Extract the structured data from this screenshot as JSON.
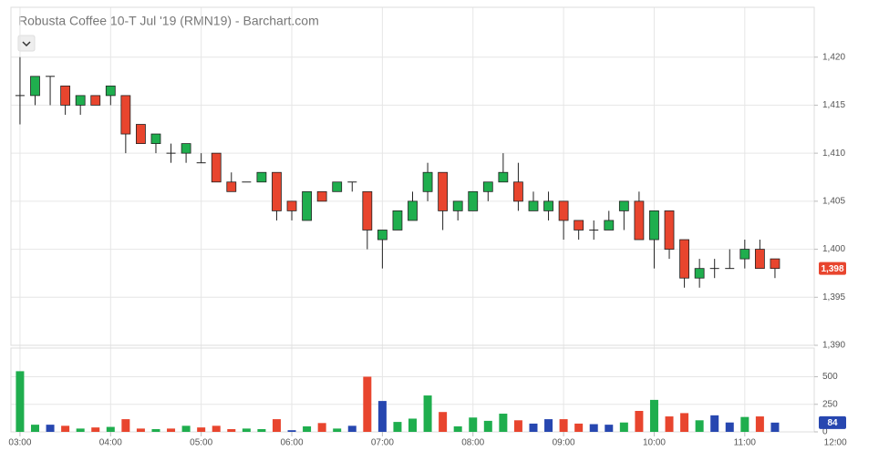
{
  "chart_data": [
    {
      "type": "candlestick",
      "title": "Robusta Coffee 10-T Jul '19 (RMN19) - Barchart.com",
      "x": [
        180,
        190,
        200,
        210,
        220,
        230,
        240,
        250,
        260,
        270,
        280,
        290,
        300,
        310,
        320,
        330,
        340,
        350,
        360,
        370,
        380,
        390,
        400,
        410,
        420,
        430,
        440,
        450,
        460,
        470,
        480,
        490,
        500,
        510,
        520,
        530,
        540,
        550,
        560,
        570,
        580,
        590,
        600,
        610,
        620,
        630,
        640,
        650,
        660,
        670,
        680
      ],
      "open": [
        1416,
        1416,
        1418,
        1417,
        1415,
        1416,
        1416,
        1416,
        1413,
        1411,
        1410,
        1410,
        1409,
        1410,
        1407,
        1407,
        1407,
        1408,
        1405,
        1403,
        1406,
        1406,
        1407,
        1406,
        1401,
        1402,
        1403,
        1406,
        1408,
        1404,
        1404,
        1406,
        1407,
        1407,
        1404,
        1404,
        1405,
        1403,
        1402,
        1402,
        1404,
        1405,
        1401,
        1404,
        1401,
        1397,
        1398,
        1398,
        1399,
        1400,
        1399
      ],
      "high": [
        1420,
        1418,
        1418,
        1417,
        1416,
        1416,
        1417,
        1416,
        1413,
        1412,
        1411,
        1411,
        1410,
        1410,
        1408,
        1407,
        1408,
        1408,
        1405,
        1406,
        1406,
        1407,
        1407,
        1406,
        1402,
        1404,
        1406,
        1409,
        1408,
        1405,
        1406,
        1407,
        1410,
        1409,
        1406,
        1406,
        1405,
        1403,
        1403,
        1404,
        1405,
        1406,
        1404,
        1404,
        1401,
        1399,
        1399,
        1400,
        1401,
        1401,
        1399
      ],
      "low": [
        1413,
        1415,
        1415,
        1414,
        1414,
        1415,
        1415,
        1410,
        1411,
        1410,
        1409,
        1409,
        1409,
        1407,
        1406,
        1407,
        1407,
        1403,
        1403,
        1403,
        1405,
        1406,
        1406,
        1400,
        1398,
        1402,
        1403,
        1405,
        1402,
        1403,
        1404,
        1405,
        1407,
        1404,
        1404,
        1403,
        1401,
        1401,
        1401,
        1402,
        1402,
        1401,
        1398,
        1399,
        1396,
        1396,
        1397,
        1398,
        1398,
        1398,
        1397
      ],
      "close": [
        1416,
        1418,
        1418,
        1415,
        1416,
        1415,
        1417,
        1412,
        1411,
        1412,
        1410,
        1411,
        1409,
        1407,
        1406,
        1407,
        1408,
        1404,
        1404,
        1406,
        1405,
        1407,
        1407,
        1402,
        1402,
        1404,
        1405,
        1408,
        1404,
        1405,
        1406,
        1407,
        1408,
        1405,
        1405,
        1405,
        1403,
        1402,
        1402,
        1403,
        1405,
        1401,
        1404,
        1400,
        1397,
        1398,
        1398,
        1398,
        1400,
        1398,
        1398
      ],
      "up_color": "#1fae4e",
      "down_color": "#e8452e",
      "xlim": [
        174,
        706
      ],
      "xticks": [
        {
          "value": 180,
          "label": "03:00"
        },
        {
          "value": 240,
          "label": "04:00"
        },
        {
          "value": 300,
          "label": "05:00"
        },
        {
          "value": 360,
          "label": "06:00"
        },
        {
          "value": 420,
          "label": "07:00"
        },
        {
          "value": 480,
          "label": "08:00"
        },
        {
          "value": 540,
          "label": "09:00"
        },
        {
          "value": 600,
          "label": "10:00"
        },
        {
          "value": 660,
          "label": "11:00"
        },
        {
          "value": 720,
          "label": "12:00"
        }
      ],
      "ylim": [
        1390,
        1425
      ],
      "yticks": [
        {
          "value": 1390,
          "label": "1,390"
        },
        {
          "value": 1395,
          "label": "1,395"
        },
        {
          "value": 1400,
          "label": "1,400"
        },
        {
          "value": 1405,
          "label": "1,405"
        },
        {
          "value": 1410,
          "label": "1,410"
        },
        {
          "value": 1415,
          "label": "1,415"
        },
        {
          "value": 1420,
          "label": "1,420"
        }
      ],
      "last_value": {
        "value": 1398,
        "label": "1,398"
      },
      "last_color": "#e8452e",
      "grid": true
    },
    {
      "type": "bar",
      "x": [
        180,
        190,
        200,
        210,
        220,
        230,
        240,
        250,
        260,
        270,
        280,
        290,
        300,
        310,
        320,
        330,
        340,
        350,
        360,
        370,
        380,
        390,
        400,
        410,
        420,
        430,
        440,
        450,
        460,
        470,
        480,
        490,
        500,
        510,
        520,
        530,
        540,
        550,
        560,
        570,
        580,
        590,
        600,
        610,
        620,
        630,
        640,
        650,
        660,
        670,
        680
      ],
      "values": [
        550,
        65,
        65,
        55,
        30,
        40,
        45,
        115,
        30,
        25,
        30,
        55,
        40,
        55,
        25,
        30,
        25,
        115,
        15,
        50,
        80,
        30,
        55,
        500,
        280,
        90,
        120,
        330,
        180,
        50,
        130,
        100,
        165,
        105,
        75,
        115,
        115,
        75,
        70,
        65,
        85,
        190,
        290,
        140,
        170,
        105,
        150,
        85,
        135,
        140,
        84
      ],
      "colors": [
        "#1fae4e",
        "#1fae4e",
        "#2747b0",
        "#e8452e",
        "#1fae4e",
        "#e8452e",
        "#1fae4e",
        "#e8452e",
        "#e8452e",
        "#1fae4e",
        "#e8452e",
        "#1fae4e",
        "#e8452e",
        "#e8452e",
        "#e8452e",
        "#1fae4e",
        "#1fae4e",
        "#e8452e",
        "#2747b0",
        "#1fae4e",
        "#e8452e",
        "#1fae4e",
        "#2747b0",
        "#e8452e",
        "#2747b0",
        "#1fae4e",
        "#1fae4e",
        "#1fae4e",
        "#e8452e",
        "#1fae4e",
        "#1fae4e",
        "#1fae4e",
        "#1fae4e",
        "#e8452e",
        "#2747b0",
        "#2747b0",
        "#e8452e",
        "#e8452e",
        "#2747b0",
        "#2747b0",
        "#1fae4e",
        "#e8452e",
        "#1fae4e",
        "#e8452e",
        "#e8452e",
        "#1fae4e",
        "#2747b0",
        "#2747b0",
        "#1fae4e",
        "#e8452e",
        "#2747b0"
      ],
      "xlim": [
        174,
        706
      ],
      "ylim": [
        0,
        760
      ],
      "yticks": [
        0,
        250,
        500
      ],
      "last_value": 84,
      "last_color": "#2747b0",
      "grid": true
    }
  ]
}
